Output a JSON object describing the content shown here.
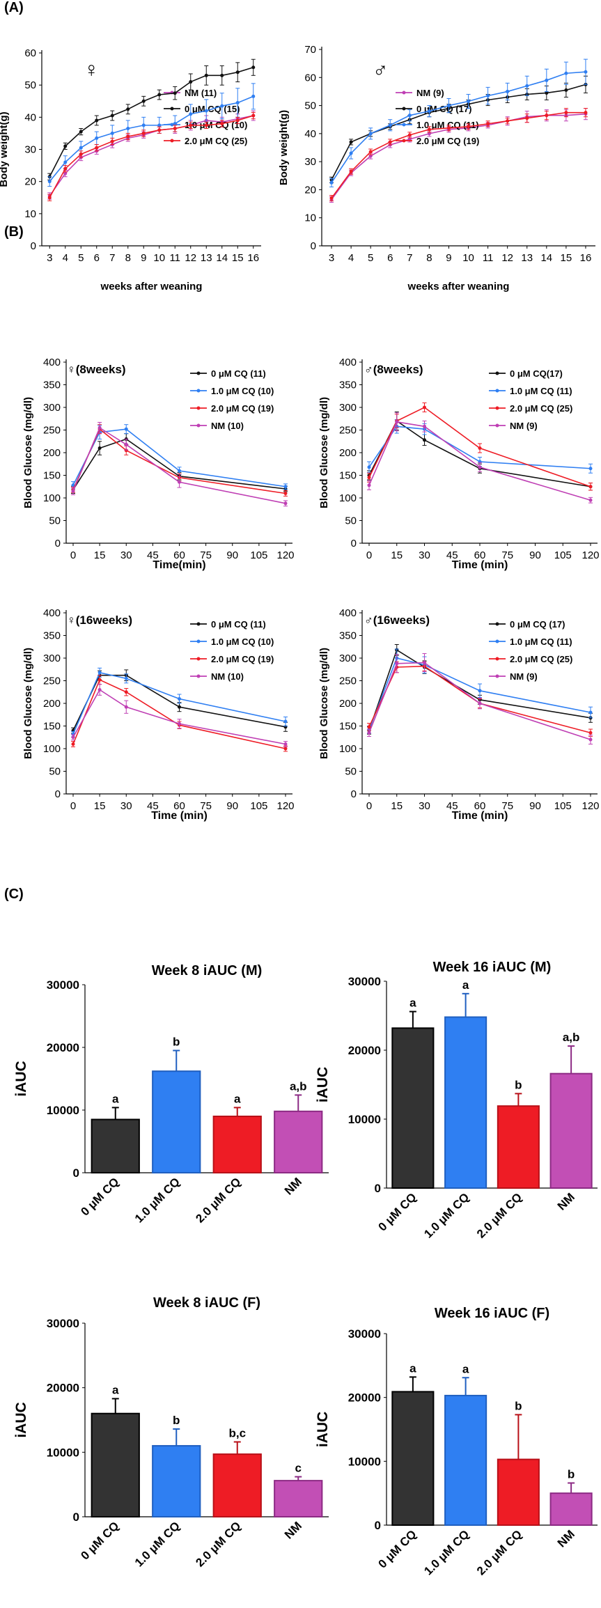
{
  "panels": {
    "a": "(A)",
    "b": "(B)",
    "c": "(C)"
  },
  "colors": {
    "black": "#111111",
    "blue": "#2f7ff2",
    "red": "#ee1c25",
    "magenta": "#bf3fb4"
  },
  "chart_data": [
    {
      "type": "line",
      "title": "♀",
      "xlabel": "weeks after weaning",
      "ylabel": "Body weight(g)",
      "x": [
        3,
        4,
        5,
        6,
        7,
        8,
        9,
        10,
        11,
        12,
        13,
        14,
        15,
        16
      ],
      "ylim": [
        0,
        60
      ],
      "yticks": [
        0,
        10,
        20,
        30,
        40,
        50,
        60
      ],
      "series": [
        {
          "name": "NM  (11)",
          "color": "magenta",
          "values": [
            15.5,
            22.5,
            27.5,
            29.5,
            31.5,
            33.5,
            34.5,
            36,
            36.5,
            37.5,
            39,
            38.5,
            39.5,
            40.5
          ],
          "err": [
            1,
            1,
            1,
            1,
            1,
            1,
            1,
            1,
            1.5,
            1.5,
            1.5,
            1.5,
            1.5,
            1.5
          ]
        },
        {
          "name": "0 μM CQ (15)",
          "color": "black",
          "values": [
            21.5,
            31,
            35.5,
            39,
            40.5,
            42.5,
            45,
            47,
            47.5,
            51,
            53,
            53,
            54,
            55.5
          ],
          "err": [
            1,
            1,
            1,
            1.5,
            1.5,
            1.5,
            1.5,
            1.5,
            2,
            2.5,
            3,
            3,
            3,
            2.5
          ]
        },
        {
          "name": "1.0 μM CQ (10)",
          "color": "blue",
          "values": [
            20,
            26,
            30.5,
            33.5,
            35,
            36.5,
            37.5,
            37.5,
            38,
            41,
            42,
            43.5,
            44.5,
            46.5
          ],
          "err": [
            1.5,
            2,
            2,
            2,
            2.5,
            2.5,
            2.5,
            2.5,
            2.5,
            3,
            3.5,
            4,
            4.5,
            4
          ]
        },
        {
          "name": "2.0 μM CQ (25)",
          "color": "red",
          "values": [
            15,
            24,
            28.5,
            30.5,
            32.5,
            34,
            35,
            36,
            36.5,
            37.5,
            37.5,
            38,
            39,
            40.5
          ],
          "err": [
            1,
            1,
            1,
            1,
            1,
            1,
            1,
            1,
            1,
            1,
            1,
            1,
            1,
            1
          ]
        }
      ]
    },
    {
      "type": "line",
      "title": "♂",
      "xlabel": "weeks after weaning",
      "ylabel": "Body weight(g)",
      "x": [
        3,
        4,
        5,
        6,
        7,
        8,
        9,
        10,
        11,
        12,
        13,
        14,
        15,
        16
      ],
      "ylim": [
        0,
        70
      ],
      "yticks": [
        0,
        10,
        20,
        30,
        40,
        50,
        60,
        70
      ],
      "series": [
        {
          "name": "NM (9)",
          "color": "magenta",
          "values": [
            16.5,
            26,
            32,
            36,
            38,
            40,
            41.5,
            42,
            43,
            44.5,
            46,
            46.5,
            46.5,
            47
          ],
          "err": [
            1,
            1,
            1,
            1,
            1,
            1,
            1,
            1,
            1,
            1.5,
            2,
            2,
            2,
            2
          ]
        },
        {
          "name": "0 μM CQ (17)",
          "color": "black",
          "values": [
            23.5,
            37,
            40,
            42.5,
            45,
            47.5,
            49,
            50.5,
            52,
            53,
            54,
            54.5,
            55.5,
            57.5
          ],
          "err": [
            1,
            1,
            1,
            1,
            1.5,
            1.5,
            1.5,
            1.5,
            2,
            2,
            2,
            2.5,
            2.5,
            3
          ]
        },
        {
          "name": "1.0 μM CQ (11)",
          "color": "blue",
          "values": [
            22.5,
            33,
            40,
            43,
            46.5,
            48,
            50,
            51.5,
            53.5,
            55,
            57,
            59,
            61.5,
            62
          ],
          "err": [
            1.5,
            2,
            2,
            2,
            2,
            2,
            2.5,
            2.5,
            3,
            3,
            3.5,
            4,
            4,
            4.5
          ]
        },
        {
          "name": "2.0 μM CQ (19)",
          "color": "red",
          "values": [
            17,
            26.5,
            33.5,
            37,
            39.5,
            41.5,
            42,
            42.5,
            43.5,
            44.5,
            45.5,
            46.5,
            47.5,
            47.5
          ],
          "err": [
            1,
            1,
            1,
            1,
            1,
            1,
            1,
            1,
            1,
            1,
            1.5,
            1.5,
            1.5,
            1.5
          ]
        }
      ]
    },
    {
      "type": "line",
      "title": "♀(8weeks)",
      "xlabel": "Time(min)",
      "ylabel": "Blood Glucose (mg/dl)",
      "x": [
        0,
        15,
        30,
        60,
        120
      ],
      "xticks": [
        "0",
        "15",
        "30",
        "45",
        "60",
        "75",
        "90",
        "105",
        "120"
      ],
      "xtickvals": [
        0,
        15,
        30,
        45,
        60,
        75,
        90,
        105,
        120
      ],
      "ylim": [
        0,
        400
      ],
      "yticks": [
        0,
        50,
        100,
        150,
        200,
        250,
        300,
        350,
        400
      ],
      "series": [
        {
          "name": "0 μM CQ (11)",
          "color": "black",
          "values": [
            118,
            210,
            230,
            148,
            120
          ],
          "err": [
            8,
            15,
            12,
            8,
            6
          ]
        },
        {
          "name": "1.0 μM CQ (10)",
          "color": "blue",
          "values": [
            128,
            245,
            252,
            160,
            125
          ],
          "err": [
            8,
            15,
            10,
            8,
            6
          ]
        },
        {
          "name": "2.0 μM CQ (19)",
          "color": "red",
          "values": [
            118,
            252,
            205,
            145,
            110
          ],
          "err": [
            6,
            10,
            10,
            8,
            6
          ]
        },
        {
          "name": "NM (10)",
          "color": "magenta",
          "values": [
            115,
            255,
            218,
            135,
            88
          ],
          "err": [
            8,
            12,
            12,
            12,
            6
          ]
        }
      ]
    },
    {
      "type": "line",
      "title": "♂(8weeks)",
      "xlabel": "Time (min)",
      "ylabel": "Blood Glucose (mg/dl)",
      "x": [
        0,
        15,
        30,
        60,
        120
      ],
      "xticks": [
        "0",
        "15",
        "30",
        "45",
        "60",
        "75",
        "90",
        "105",
        "120"
      ],
      "xtickvals": [
        0,
        15,
        30,
        45,
        60,
        75,
        90,
        105,
        120
      ],
      "ylim": [
        0,
        400
      ],
      "yticks": [
        0,
        50,
        100,
        150,
        200,
        250,
        300,
        350,
        400
      ],
      "series": [
        {
          "name": "0 μM CQ(17)",
          "color": "black",
          "values": [
            150,
            270,
            228,
            165,
            125
          ],
          "err": [
            10,
            20,
            12,
            10,
            8
          ]
        },
        {
          "name": "1.0 μM CQ (11)",
          "color": "blue",
          "values": [
            168,
            258,
            252,
            180,
            165
          ],
          "err": [
            12,
            15,
            12,
            10,
            10
          ]
        },
        {
          "name": "2.0 μM CQ (25)",
          "color": "red",
          "values": [
            145,
            270,
            300,
            210,
            125
          ],
          "err": [
            10,
            15,
            10,
            10,
            8
          ]
        },
        {
          "name": "NM (9)",
          "color": "magenta",
          "values": [
            128,
            268,
            258,
            168,
            95
          ],
          "err": [
            10,
            20,
            12,
            10,
            6
          ]
        }
      ]
    },
    {
      "type": "line",
      "title": "♀(16weeks)",
      "xlabel": "Time (min)",
      "ylabel": "Blood Glucose (mg/dl)",
      "x": [
        0,
        15,
        30,
        60,
        120
      ],
      "xticks": [
        "0",
        "15",
        "30",
        "45",
        "60",
        "75",
        "90",
        "105",
        "120"
      ],
      "xtickvals": [
        0,
        15,
        30,
        45,
        60,
        75,
        90,
        105,
        120
      ],
      "ylim": [
        0,
        400
      ],
      "yticks": [
        0,
        50,
        100,
        150,
        200,
        250,
        300,
        350,
        400
      ],
      "series": [
        {
          "name": "0 μM CQ (11)",
          "color": "black",
          "values": [
            140,
            262,
            262,
            192,
            148
          ],
          "err": [
            6,
            10,
            12,
            10,
            10
          ]
        },
        {
          "name": "1.0 μM CQ (10)",
          "color": "blue",
          "values": [
            132,
            268,
            255,
            210,
            160
          ],
          "err": [
            6,
            10,
            10,
            10,
            10
          ]
        },
        {
          "name": "2.0 μM CQ (19)",
          "color": "red",
          "values": [
            110,
            252,
            225,
            152,
            100
          ],
          "err": [
            6,
            10,
            8,
            8,
            6
          ]
        },
        {
          "name": "NM (10)",
          "color": "magenta",
          "values": [
            125,
            230,
            192,
            155,
            110
          ],
          "err": [
            6,
            12,
            14,
            10,
            6
          ]
        }
      ]
    },
    {
      "type": "line",
      "title": "♂(16weeks)",
      "xlabel": "Time (min)",
      "ylabel": "Blood Glucose (mg/dl)",
      "x": [
        0,
        15,
        30,
        60,
        120
      ],
      "xticks": [
        "0",
        "15",
        "30",
        "45",
        "60",
        "75",
        "90",
        "105",
        "120"
      ],
      "xtickvals": [
        0,
        15,
        30,
        45,
        60,
        75,
        90,
        105,
        120
      ],
      "ylim": [
        0,
        400
      ],
      "yticks": [
        0,
        50,
        100,
        150,
        200,
        250,
        300,
        350,
        400
      ],
      "series": [
        {
          "name": "0 μM CQ (17)",
          "color": "black",
          "values": [
            140,
            318,
            280,
            208,
            168
          ],
          "err": [
            8,
            12,
            14,
            10,
            10
          ]
        },
        {
          "name": "1.0 μM CQ (11)",
          "color": "blue",
          "values": [
            142,
            300,
            285,
            228,
            180
          ],
          "err": [
            8,
            20,
            18,
            15,
            12
          ]
        },
        {
          "name": "2.0 μM CQ (25)",
          "color": "red",
          "values": [
            148,
            280,
            282,
            200,
            135
          ],
          "err": [
            8,
            12,
            10,
            10,
            8
          ]
        },
        {
          "name": "NM (9)",
          "color": "magenta",
          "values": [
            135,
            288,
            290,
            200,
            120
          ],
          "err": [
            8,
            20,
            20,
            12,
            10
          ]
        }
      ]
    },
    {
      "type": "bar",
      "title": "Week 8 iAUC (M)",
      "ylabel": "iAUC",
      "categories": [
        "0 μM CQ",
        "1.0 μM CQ",
        "2.0 μM CQ",
        "NM"
      ],
      "values": [
        8500,
        16200,
        9000,
        9800
      ],
      "err": [
        1900,
        3300,
        1400,
        2600
      ],
      "letters": [
        "a",
        "b",
        "a",
        "a,b"
      ],
      "ylim": [
        0,
        30000
      ],
      "yticks": [
        0,
        10000,
        20000,
        30000
      ]
    },
    {
      "type": "bar",
      "title": "Week 16 iAUC (M)",
      "ylabel": "iAUC",
      "categories": [
        "0 μM CQ",
        "1.0 μM CQ",
        "2.0 μM CQ",
        "NM"
      ],
      "values": [
        23200,
        24800,
        11900,
        16600
      ],
      "err": [
        2400,
        3400,
        1800,
        4000
      ],
      "letters": [
        "a",
        "a",
        "b",
        "a,b"
      ],
      "ylim": [
        0,
        30000
      ],
      "yticks": [
        0,
        10000,
        20000,
        30000
      ]
    },
    {
      "type": "bar",
      "title": "Week 8 iAUC (F)",
      "ylabel": "iAUC",
      "categories": [
        "0 μM CQ",
        "1.0 μM CQ",
        "2.0 μM CQ",
        "NM"
      ],
      "values": [
        16000,
        11000,
        9700,
        5600
      ],
      "err": [
        2300,
        2600,
        1900,
        600
      ],
      "letters": [
        "a",
        "b",
        "b,c",
        "c"
      ],
      "ylim": [
        0,
        30000
      ],
      "yticks": [
        0,
        10000,
        20000,
        30000
      ]
    },
    {
      "type": "bar",
      "title": "Week 16 iAUC (F)",
      "ylabel": "iAUC",
      "categories": [
        "0 μM CQ",
        "1.0 μM CQ",
        "2.0 μM CQ",
        "NM"
      ],
      "values": [
        20900,
        20300,
        10300,
        5000
      ],
      "err": [
        2300,
        2800,
        7000,
        1600
      ],
      "letters": [
        "a",
        "a",
        "b",
        "b"
      ],
      "ylim": [
        0,
        30000
      ],
      "yticks": [
        0,
        10000,
        20000,
        30000
      ]
    }
  ]
}
